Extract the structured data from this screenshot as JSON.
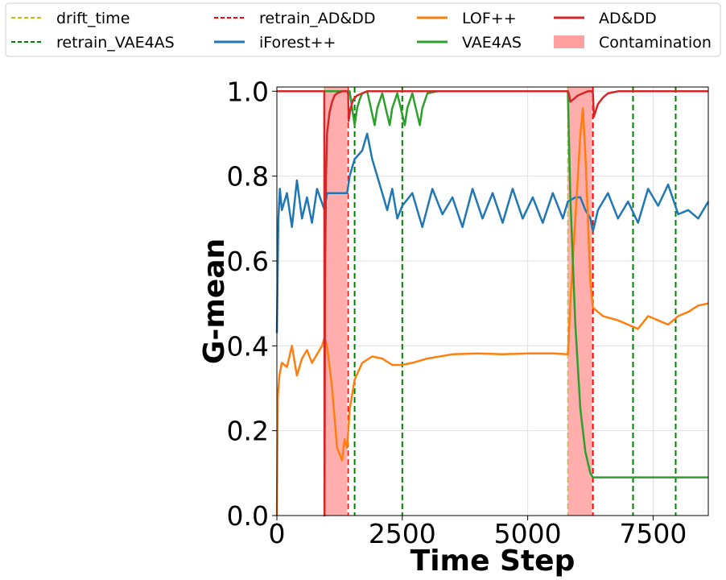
{
  "chart_data": {
    "type": "line",
    "title": "",
    "xlabel": "Time Step",
    "ylabel": "G-mean",
    "xlim": [
      0,
      8600
    ],
    "ylim": [
      0,
      1.01
    ],
    "xticks": [
      0,
      2500,
      5000,
      7500
    ],
    "xtick_labels": [
      "0",
      "2500",
      "5000",
      "7500"
    ],
    "yticks": [
      0.0,
      0.2,
      0.4,
      0.6,
      0.8,
      1.0
    ],
    "ytick_labels": [
      "0.0",
      "0.2",
      "0.4",
      "0.6",
      "0.8",
      "1.0"
    ],
    "grid": true,
    "legend_position": "top",
    "legend": [
      {
        "label": "drift_time",
        "style": "dashed",
        "color": "#bcbd22"
      },
      {
        "label": "retrain_VAE4AS",
        "style": "dashed",
        "color": "#008000"
      },
      {
        "label": "retrain_AD&DD",
        "style": "dashed",
        "color": "#ff0000"
      },
      {
        "label": "iForest++",
        "style": "solid",
        "color": "#1f77b4"
      },
      {
        "label": "LOF++",
        "style": "solid",
        "color": "#ff7f0e"
      },
      {
        "label": "VAE4AS",
        "style": "solid",
        "color": "#2ca02c"
      },
      {
        "label": "AD&DD",
        "style": "solid",
        "color": "#d62728"
      },
      {
        "label": "Contamination",
        "style": "patch",
        "color": "#ff9f9f"
      }
    ],
    "contamination_intervals": [
      [
        950,
        1400
      ],
      [
        5800,
        6280
      ]
    ],
    "drift_times": [
      950,
      5800
    ],
    "retrain_ADDD": [
      1420,
      6300
    ],
    "retrain_VAE4AS": [
      1550,
      2500,
      6300,
      7100,
      7950
    ],
    "series": [
      {
        "name": "iForest++",
        "color": "#1f77b4",
        "x": [
          0,
          30,
          60,
          100,
          200,
          300,
          400,
          500,
          600,
          700,
          800,
          950,
          1000,
          1200,
          1400,
          1450,
          1550,
          1700,
          1800,
          1900,
          2000,
          2100,
          2200,
          2300,
          2400,
          2500,
          2700,
          2900,
          3100,
          3300,
          3500,
          3700,
          3900,
          4100,
          4300,
          4500,
          4700,
          4900,
          5100,
          5300,
          5500,
          5700,
          5800,
          5950,
          6050,
          6150,
          6250,
          6300,
          6400,
          6600,
          6800,
          7000,
          7200,
          7400,
          7600,
          7800,
          8000,
          8200,
          8400,
          8600
        ],
        "y": [
          0.43,
          0.7,
          0.77,
          0.72,
          0.76,
          0.68,
          0.79,
          0.7,
          0.75,
          0.69,
          0.77,
          0.72,
          0.76,
          0.76,
          0.76,
          0.8,
          0.84,
          0.86,
          0.9,
          0.84,
          0.8,
          0.76,
          0.72,
          0.77,
          0.7,
          0.73,
          0.76,
          0.68,
          0.77,
          0.71,
          0.75,
          0.68,
          0.77,
          0.7,
          0.76,
          0.69,
          0.77,
          0.7,
          0.75,
          0.69,
          0.76,
          0.7,
          0.74,
          0.75,
          0.75,
          0.72,
          0.7,
          0.67,
          0.72,
          0.76,
          0.7,
          0.74,
          0.69,
          0.77,
          0.73,
          0.78,
          0.71,
          0.72,
          0.7,
          0.74
        ]
      },
      {
        "name": "LOF++",
        "color": "#ff7f0e",
        "x": [
          0,
          20,
          50,
          100,
          200,
          300,
          400,
          500,
          600,
          700,
          800,
          900,
          950,
          1000,
          1100,
          1200,
          1300,
          1350,
          1400,
          1450,
          1550,
          1700,
          1900,
          2100,
          2300,
          2500,
          2700,
          3000,
          3500,
          4000,
          4500,
          5000,
          5500,
          5800,
          5850,
          5950,
          6050,
          6100,
          6150,
          6250,
          6300,
          6500,
          6800,
          7000,
          7200,
          7400,
          7600,
          7800,
          8000,
          8200,
          8400,
          8600
        ],
        "y": [
          0.0,
          0.28,
          0.33,
          0.36,
          0.35,
          0.4,
          0.33,
          0.37,
          0.39,
          0.36,
          0.38,
          0.4,
          0.42,
          0.4,
          0.3,
          0.16,
          0.13,
          0.18,
          0.16,
          0.25,
          0.32,
          0.36,
          0.375,
          0.37,
          0.355,
          0.355,
          0.36,
          0.37,
          0.38,
          0.382,
          0.38,
          0.382,
          0.382,
          0.38,
          0.5,
          0.7,
          0.9,
          0.96,
          0.85,
          0.55,
          0.49,
          0.47,
          0.46,
          0.45,
          0.44,
          0.47,
          0.46,
          0.45,
          0.47,
          0.48,
          0.495,
          0.5
        ]
      },
      {
        "name": "VAE4AS",
        "color": "#2ca02c",
        "x": [
          0,
          950,
          1000,
          1100,
          1200,
          1300,
          1400,
          1450,
          1550,
          1600,
          1650,
          1700,
          1800,
          1950,
          2000,
          2100,
          2250,
          2300,
          2400,
          2550,
          2600,
          2700,
          2850,
          2900,
          3000,
          3200,
          3500,
          4000,
          5000,
          5800,
          5850,
          5950,
          6050,
          6150,
          6250,
          6300,
          7000,
          8000,
          8600
        ],
        "y": [
          1.0,
          1.0,
          1.0,
          1.0,
          1.0,
          1.0,
          1.0,
          1.0,
          0.92,
          0.96,
          0.98,
          0.995,
          1.0,
          0.92,
          0.96,
          0.995,
          0.92,
          0.96,
          0.995,
          0.92,
          0.96,
          0.995,
          0.92,
          0.96,
          0.995,
          1.0,
          1.0,
          1.0,
          1.0,
          1.0,
          0.75,
          0.45,
          0.25,
          0.15,
          0.1,
          0.09,
          0.09,
          0.09,
          0.09
        ]
      },
      {
        "name": "AD&DD",
        "color": "#d62728",
        "x": [
          0,
          945,
          950,
          960,
          980,
          1000,
          1050,
          1100,
          1150,
          1200,
          1300,
          1400,
          1420,
          1430,
          1470,
          1520,
          1600,
          1700,
          1800,
          2000,
          5800,
          5820,
          5850,
          5900,
          6000,
          6100,
          6200,
          6280,
          6300,
          6320,
          6400,
          6500,
          6600,
          6800,
          7000,
          8600
        ],
        "y": [
          1.0,
          1.0,
          0.0,
          0.55,
          0.8,
          0.9,
          0.95,
          0.975,
          0.99,
          0.995,
          1.0,
          1.0,
          0.995,
          0.93,
          0.96,
          0.98,
          0.99,
          0.995,
          1.0,
          1.0,
          1.0,
          0.995,
          0.975,
          0.98,
          0.99,
          0.995,
          1.0,
          1.0,
          0.995,
          0.94,
          0.97,
          0.985,
          0.995,
          1.0,
          1.0,
          1.0
        ]
      }
    ]
  }
}
